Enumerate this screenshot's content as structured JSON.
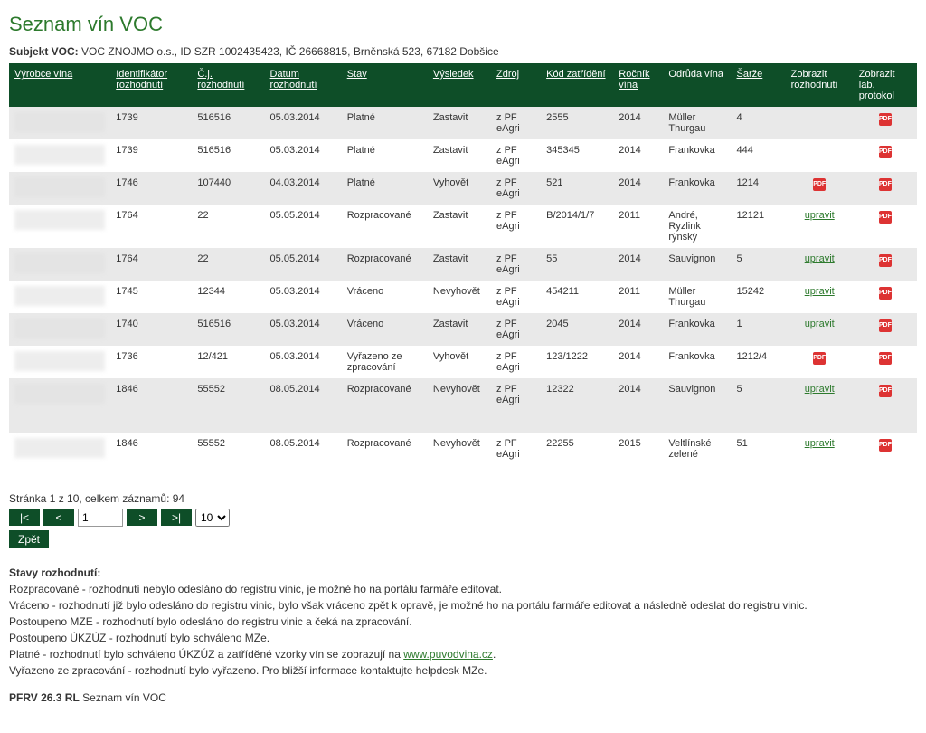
{
  "page_title": "Seznam vín VOC",
  "subject_label": "Subjekt VOC:",
  "subject_value": "VOC ZNOJMO o.s., ID SZR 1002435423, IČ 26668815, Brněnská 523, 67182 Dobšice",
  "columns": [
    {
      "label": "Výrobce vína",
      "sortable": true
    },
    {
      "label": "Identifikátor rozhodnutí",
      "sortable": true
    },
    {
      "label": "Č.j. rozhodnutí",
      "sortable": true
    },
    {
      "label": "Datum rozhodnutí",
      "sortable": true
    },
    {
      "label": "Stav",
      "sortable": true
    },
    {
      "label": "Výsledek",
      "sortable": true
    },
    {
      "label": "Zdroj",
      "sortable": true
    },
    {
      "label": "Kód zatřídění",
      "sortable": true
    },
    {
      "label": "Ročník vína",
      "sortable": true
    },
    {
      "label": "Odrůda vína",
      "sortable": false
    },
    {
      "label": "Šarže",
      "sortable": true
    },
    {
      "label": "Zobrazit rozhodnutí",
      "sortable": false
    },
    {
      "label": "Zobrazit lab. protokol",
      "sortable": false
    }
  ],
  "col_widths": [
    "110px",
    "90px",
    "80px",
    "85px",
    "95px",
    "70px",
    "55px",
    "80px",
    "55px",
    "75px",
    "60px",
    "75px",
    "70px"
  ],
  "rows": [
    {
      "ident": "1739",
      "cj": "516516",
      "datum": "05.03.2014",
      "stav": "Platné",
      "vysledek": "Zastavit",
      "zdroj": "z PF eAgri",
      "kod": "2555",
      "rocnik": "2014",
      "odruda": "Müller Thurgau",
      "sarze": "4",
      "edit": "",
      "pdf_dec": false,
      "pdf_lab": true
    },
    {
      "ident": "1739",
      "cj": "516516",
      "datum": "05.03.2014",
      "stav": "Platné",
      "vysledek": "Zastavit",
      "zdroj": "z PF eAgri",
      "kod": "345345",
      "rocnik": "2014",
      "odruda": "Frankovka",
      "sarze": "444",
      "edit": "",
      "pdf_dec": false,
      "pdf_lab": true
    },
    {
      "ident": "1746",
      "cj": "107440",
      "datum": "04.03.2014",
      "stav": "Platné",
      "vysledek": "Vyhovět",
      "zdroj": "z PF eAgri",
      "kod": "521",
      "rocnik": "2014",
      "odruda": "Frankovka",
      "sarze": "1214",
      "edit": "",
      "pdf_dec": true,
      "pdf_lab": true
    },
    {
      "ident": "1764",
      "cj": "22",
      "datum": "05.05.2014",
      "stav": "Rozpracované",
      "vysledek": "Zastavit",
      "zdroj": "z PF eAgri",
      "kod": "B/2014/1/7",
      "rocnik": "2011",
      "odruda": "André, Ryzlink rýnský",
      "sarze": "12121",
      "edit": "upravit",
      "pdf_dec": false,
      "pdf_lab": true
    },
    {
      "ident": "1764",
      "cj": "22",
      "datum": "05.05.2014",
      "stav": "Rozpracované",
      "vysledek": "Zastavit",
      "zdroj": "z PF eAgri",
      "kod": "55",
      "rocnik": "2014",
      "odruda": "Sauvignon",
      "sarze": "5",
      "edit": "upravit",
      "pdf_dec": false,
      "pdf_lab": true
    },
    {
      "ident": "1745",
      "cj": "12344",
      "datum": "05.03.2014",
      "stav": "Vráceno",
      "vysledek": "Nevyhovět",
      "zdroj": "z PF eAgri",
      "kod": "454211",
      "rocnik": "2011",
      "odruda": "Müller Thurgau",
      "sarze": "15242",
      "edit": "upravit",
      "pdf_dec": false,
      "pdf_lab": true
    },
    {
      "ident": "1740",
      "cj": "516516",
      "datum": "05.03.2014",
      "stav": "Vráceno",
      "vysledek": "Zastavit",
      "zdroj": "z PF eAgri",
      "kod": "2045",
      "rocnik": "2014",
      "odruda": "Frankovka",
      "sarze": "1",
      "edit": "upravit",
      "pdf_dec": false,
      "pdf_lab": true
    },
    {
      "ident": "1736",
      "cj": "12/421",
      "datum": "05.03.2014",
      "stav": "Vyřazeno ze zpracování",
      "vysledek": "Vyhovět",
      "zdroj": "z PF eAgri",
      "kod": "123/1222",
      "rocnik": "2014",
      "odruda": "Frankovka",
      "sarze": "1212/4",
      "edit": "",
      "pdf_dec": true,
      "pdf_lab": true
    },
    {
      "ident": "1846",
      "cj": "55552",
      "datum": "08.05.2014",
      "stav": "Rozpracované",
      "vysledek": "Nevyhovět",
      "zdroj": "z PF eAgri",
      "kod": "12322",
      "rocnik": "2014",
      "odruda": "Sauvignon",
      "sarze": "5",
      "edit": "upravit",
      "pdf_dec": false,
      "pdf_lab": true,
      "tall": true
    },
    {
      "ident": "1846",
      "cj": "55552",
      "datum": "08.05.2014",
      "stav": "Rozpracované",
      "vysledek": "Nevyhovět",
      "zdroj": "z PF eAgri",
      "kod": "22255",
      "rocnik": "2015",
      "odruda": "Veltlínské zelené",
      "sarze": "51",
      "edit": "upravit",
      "pdf_dec": false,
      "pdf_lab": true,
      "tall": true
    }
  ],
  "pager": {
    "summary": "Stránka 1 z 10, celkem záznamů: 94",
    "first": "|<",
    "prev": "<",
    "page_input": "1",
    "next": ">",
    "last": ">|",
    "page_size": "10"
  },
  "back_label": "Zpět",
  "states": {
    "heading": "Stavy rozhodnutí:",
    "lines": [
      "Rozpracované - rozhodnutí nebylo odesláno do registru vinic, je možné ho na portálu farmáře editovat.",
      "Vráceno - rozhodnutí již bylo odesláno do registru vinic, bylo však vráceno zpět k opravě, je možné ho na portálu farmáře editovat a následně odeslat do registru vinic.",
      "Postoupeno MZE - rozhodnutí bylo odesláno do registru vinic a čeká na zpracování.",
      "Postoupeno ÚKZÚZ - rozhodnutí bylo schváleno MZe."
    ],
    "line_with_link_pre": "Platné - rozhodnutí bylo schváleno ÚKZÚZ a zatříděné vzorky vín se zobrazují na ",
    "link_text": "www.puvodvina.cz",
    "line_with_link_post": ".",
    "last_line": "Vyřazeno ze zpracování - rozhodnutí bylo vyřazeno. Pro bližší informace kontaktujte helpdesk MZe."
  },
  "footer": {
    "version": "PFRV 26.3 RL",
    "title": "Seznam vín VOC"
  },
  "colors": {
    "header_bg": "#0e4e28",
    "header_fg": "#ffffff",
    "row_even": "#e9e9e9",
    "row_odd": "#ffffff",
    "accent": "#2d7a2d"
  }
}
